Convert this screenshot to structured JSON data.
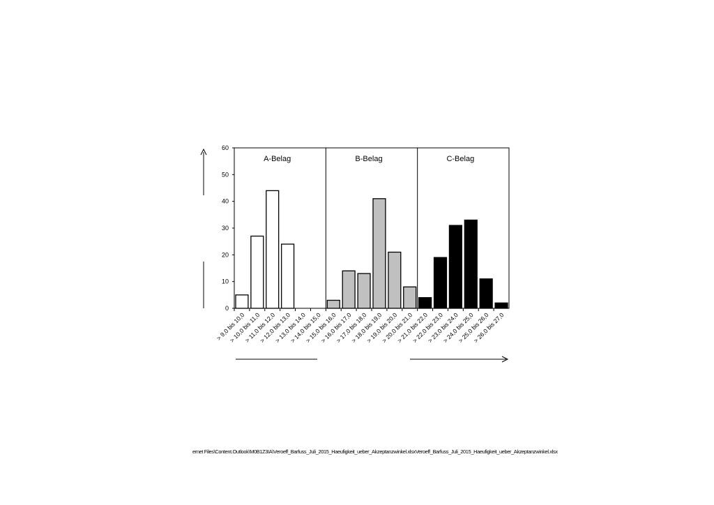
{
  "chart_data": {
    "type": "bar",
    "categories": [
      "> 9,0 bis 10,0",
      "> 10,0 bis 11,0",
      "> 11,0 bis 12,0",
      "> 12,0 bis 13,0",
      "> 13,0 bis 14,0",
      "> 14,0 bis 15,0",
      "> 15,0 bis 16,0",
      "> 16,0 bis 17,0",
      "> 17,0 bis 18,0",
      "> 18,0 bis 19,0",
      "> 19,0 bis 20,0",
      "> 20,0 bis 21,0",
      "> 21,0 bis 22,0",
      "> 22,0 bis 23,0",
      "> 23,0 bis 24,0",
      "> 24,0 bis 25,0",
      "> 25,0 bis 26,0",
      "> 26,0 bis 27,0"
    ],
    "groups": [
      {
        "name": "A-Belag",
        "color": "#ffffff",
        "values": [
          5,
          27,
          44,
          24,
          0,
          0
        ]
      },
      {
        "name": "B-Belag",
        "color": "#c0c0c0",
        "values": [
          3,
          14,
          13,
          41,
          21,
          8
        ]
      },
      {
        "name": "C-Belag",
        "color": "#000000",
        "values": [
          4,
          19,
          31,
          33,
          11,
          2
        ]
      }
    ],
    "yticks": [
      0,
      10,
      20,
      30,
      40,
      50,
      60
    ],
    "ylim": [
      0,
      60
    ],
    "grid": false,
    "xlabel": "",
    "ylabel": ""
  },
  "footer": {
    "path": "ernet Files\\Content.Outlook\\M0B1Z3IA\\Veroeff_Barfuss_Juli_2015_Haeufigkeit_ueber_Akzeptanzwinkel.xlsxVeroeff_Barfuss_Juli_2015_Haeufigkeit_ueber_Akzeptanzwinkel.xlsx"
  }
}
